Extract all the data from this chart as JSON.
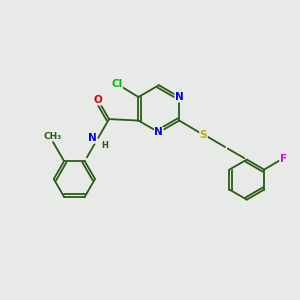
{
  "bg_color": "#e8eae8",
  "bond_color": "#2a5a18",
  "atom_colors": {
    "N": "#0000ee",
    "O": "#dd0000",
    "S": "#bbaa00",
    "Cl": "#00bb00",
    "F": "#ee00ee",
    "C": "#2a5a18",
    "H": "#2a5a18"
  },
  "font_size": 7.5,
  "line_width": 1.3
}
